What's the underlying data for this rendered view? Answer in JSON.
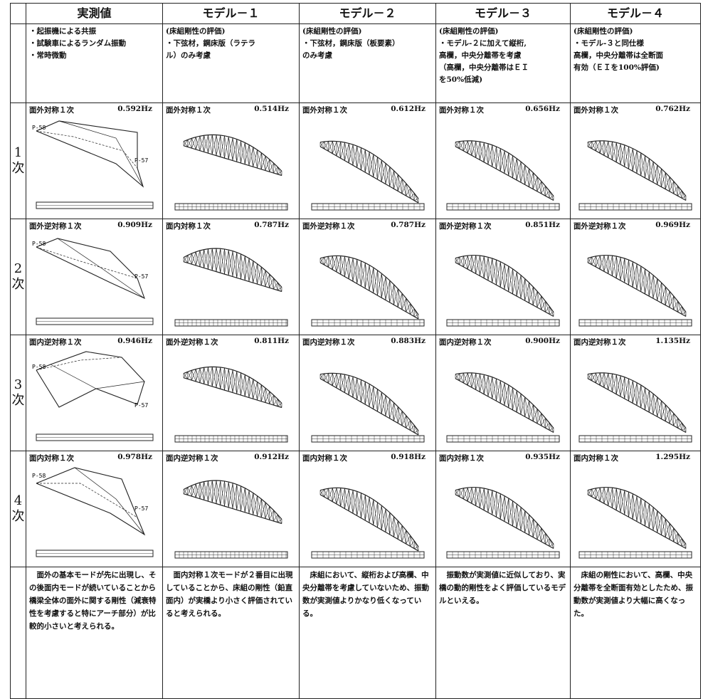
{
  "headers": [
    "実測値",
    "モデル－１",
    "モデル－２",
    "モデル－３",
    "モデル－４"
  ],
  "descriptions": [
    [
      "・起振機による共振",
      "・試験車によるランダム振動",
      "・常時微動"
    ],
    [
      "(床組剛性の評価)",
      "・下弦材，鋼床版（ラテラ",
      "ル）のみ考慮"
    ],
    [
      "(床組剛性の評価)",
      "・下弦材，鋼床版（板要素）",
      "のみ考慮"
    ],
    [
      "(床組剛性の評価)",
      "・モデル-２に加えて縦桁,",
      "高欄，中央分離帯を考慮",
      "（高欄，中央分離帯はＥＩ",
      "を50%低減)"
    ],
    [
      "(床組剛性の評価)",
      "・モデル-３と同仕様",
      "高欄，中央分離帯は全断面",
      "有効（ＥＩを100%評価)"
    ]
  ],
  "rows": [
    {
      "label": [
        "1",
        "次"
      ],
      "cells": [
        {
          "mode": "面外対称１次",
          "freq": "0.592Hz"
        },
        {
          "mode": "面外対称１次",
          "freq": "0.514Hz"
        },
        {
          "mode": "面外対称１次",
          "freq": "0.612Hz"
        },
        {
          "mode": "面外対称１次",
          "freq": "0.656Hz"
        },
        {
          "mode": "面外対称１次",
          "freq": "0.762Hz"
        }
      ]
    },
    {
      "label": [
        "2",
        "次"
      ],
      "cells": [
        {
          "mode": "面外逆対称１次",
          "freq": "0.909Hz"
        },
        {
          "mode": "面内対称１次",
          "freq": "0.787Hz"
        },
        {
          "mode": "面外逆対称１次",
          "freq": "0.787Hz"
        },
        {
          "mode": "面外逆対称１次",
          "freq": "0.851Hz"
        },
        {
          "mode": "面外逆対称１次",
          "freq": "0.969Hz"
        }
      ]
    },
    {
      "label": [
        "3",
        "次"
      ],
      "cells": [
        {
          "mode": "面内逆対称１次",
          "freq": "0.946Hz"
        },
        {
          "mode": "面外逆対称１次",
          "freq": "0.811Hz"
        },
        {
          "mode": "面内逆対称１次",
          "freq": "0.883Hz"
        },
        {
          "mode": "面内逆対称１次",
          "freq": "0.900Hz"
        },
        {
          "mode": "面内逆対称１次",
          "freq": "1.135Hz"
        }
      ]
    },
    {
      "label": [
        "4",
        "次"
      ],
      "cells": [
        {
          "mode": "面内対称１次",
          "freq": "0.978Hz"
        },
        {
          "mode": "面内逆対称１次",
          "freq": "0.912Hz"
        },
        {
          "mode": "面内対称１次",
          "freq": "0.918Hz"
        },
        {
          "mode": "面内対称１次",
          "freq": "0.935Hz"
        },
        {
          "mode": "面内対称１次",
          "freq": "1.295Hz"
        }
      ]
    }
  ],
  "point_labels": {
    "left": "P-58",
    "right": "P-57"
  },
  "notes": [
    "　面外の基本モードが先に出現し、その後面内モードが続いていることから橋梁全体の面外に関する剛性（減衰特性を考慮すると特にアーチ部分）が比較的小さいと考えられる。",
    "　面内対称１次モードが２番目に出現していることから、床組の剛性（鉛直面内）が実橋より小さく評価されていると考えられる。",
    "　床組において、縦桁および高欄、中央分離帯を考慮していないため、振動数が実測値よりかなり低くなっている。",
    "　振動数が実測値に近似しており、実橋の動的剛性をよく評価しているモデルといえる。",
    "　床組の剛性において、高欄、中央分離帯を全断面有効としたため、振動数が実測値より大幅に高くなった。"
  ]
}
